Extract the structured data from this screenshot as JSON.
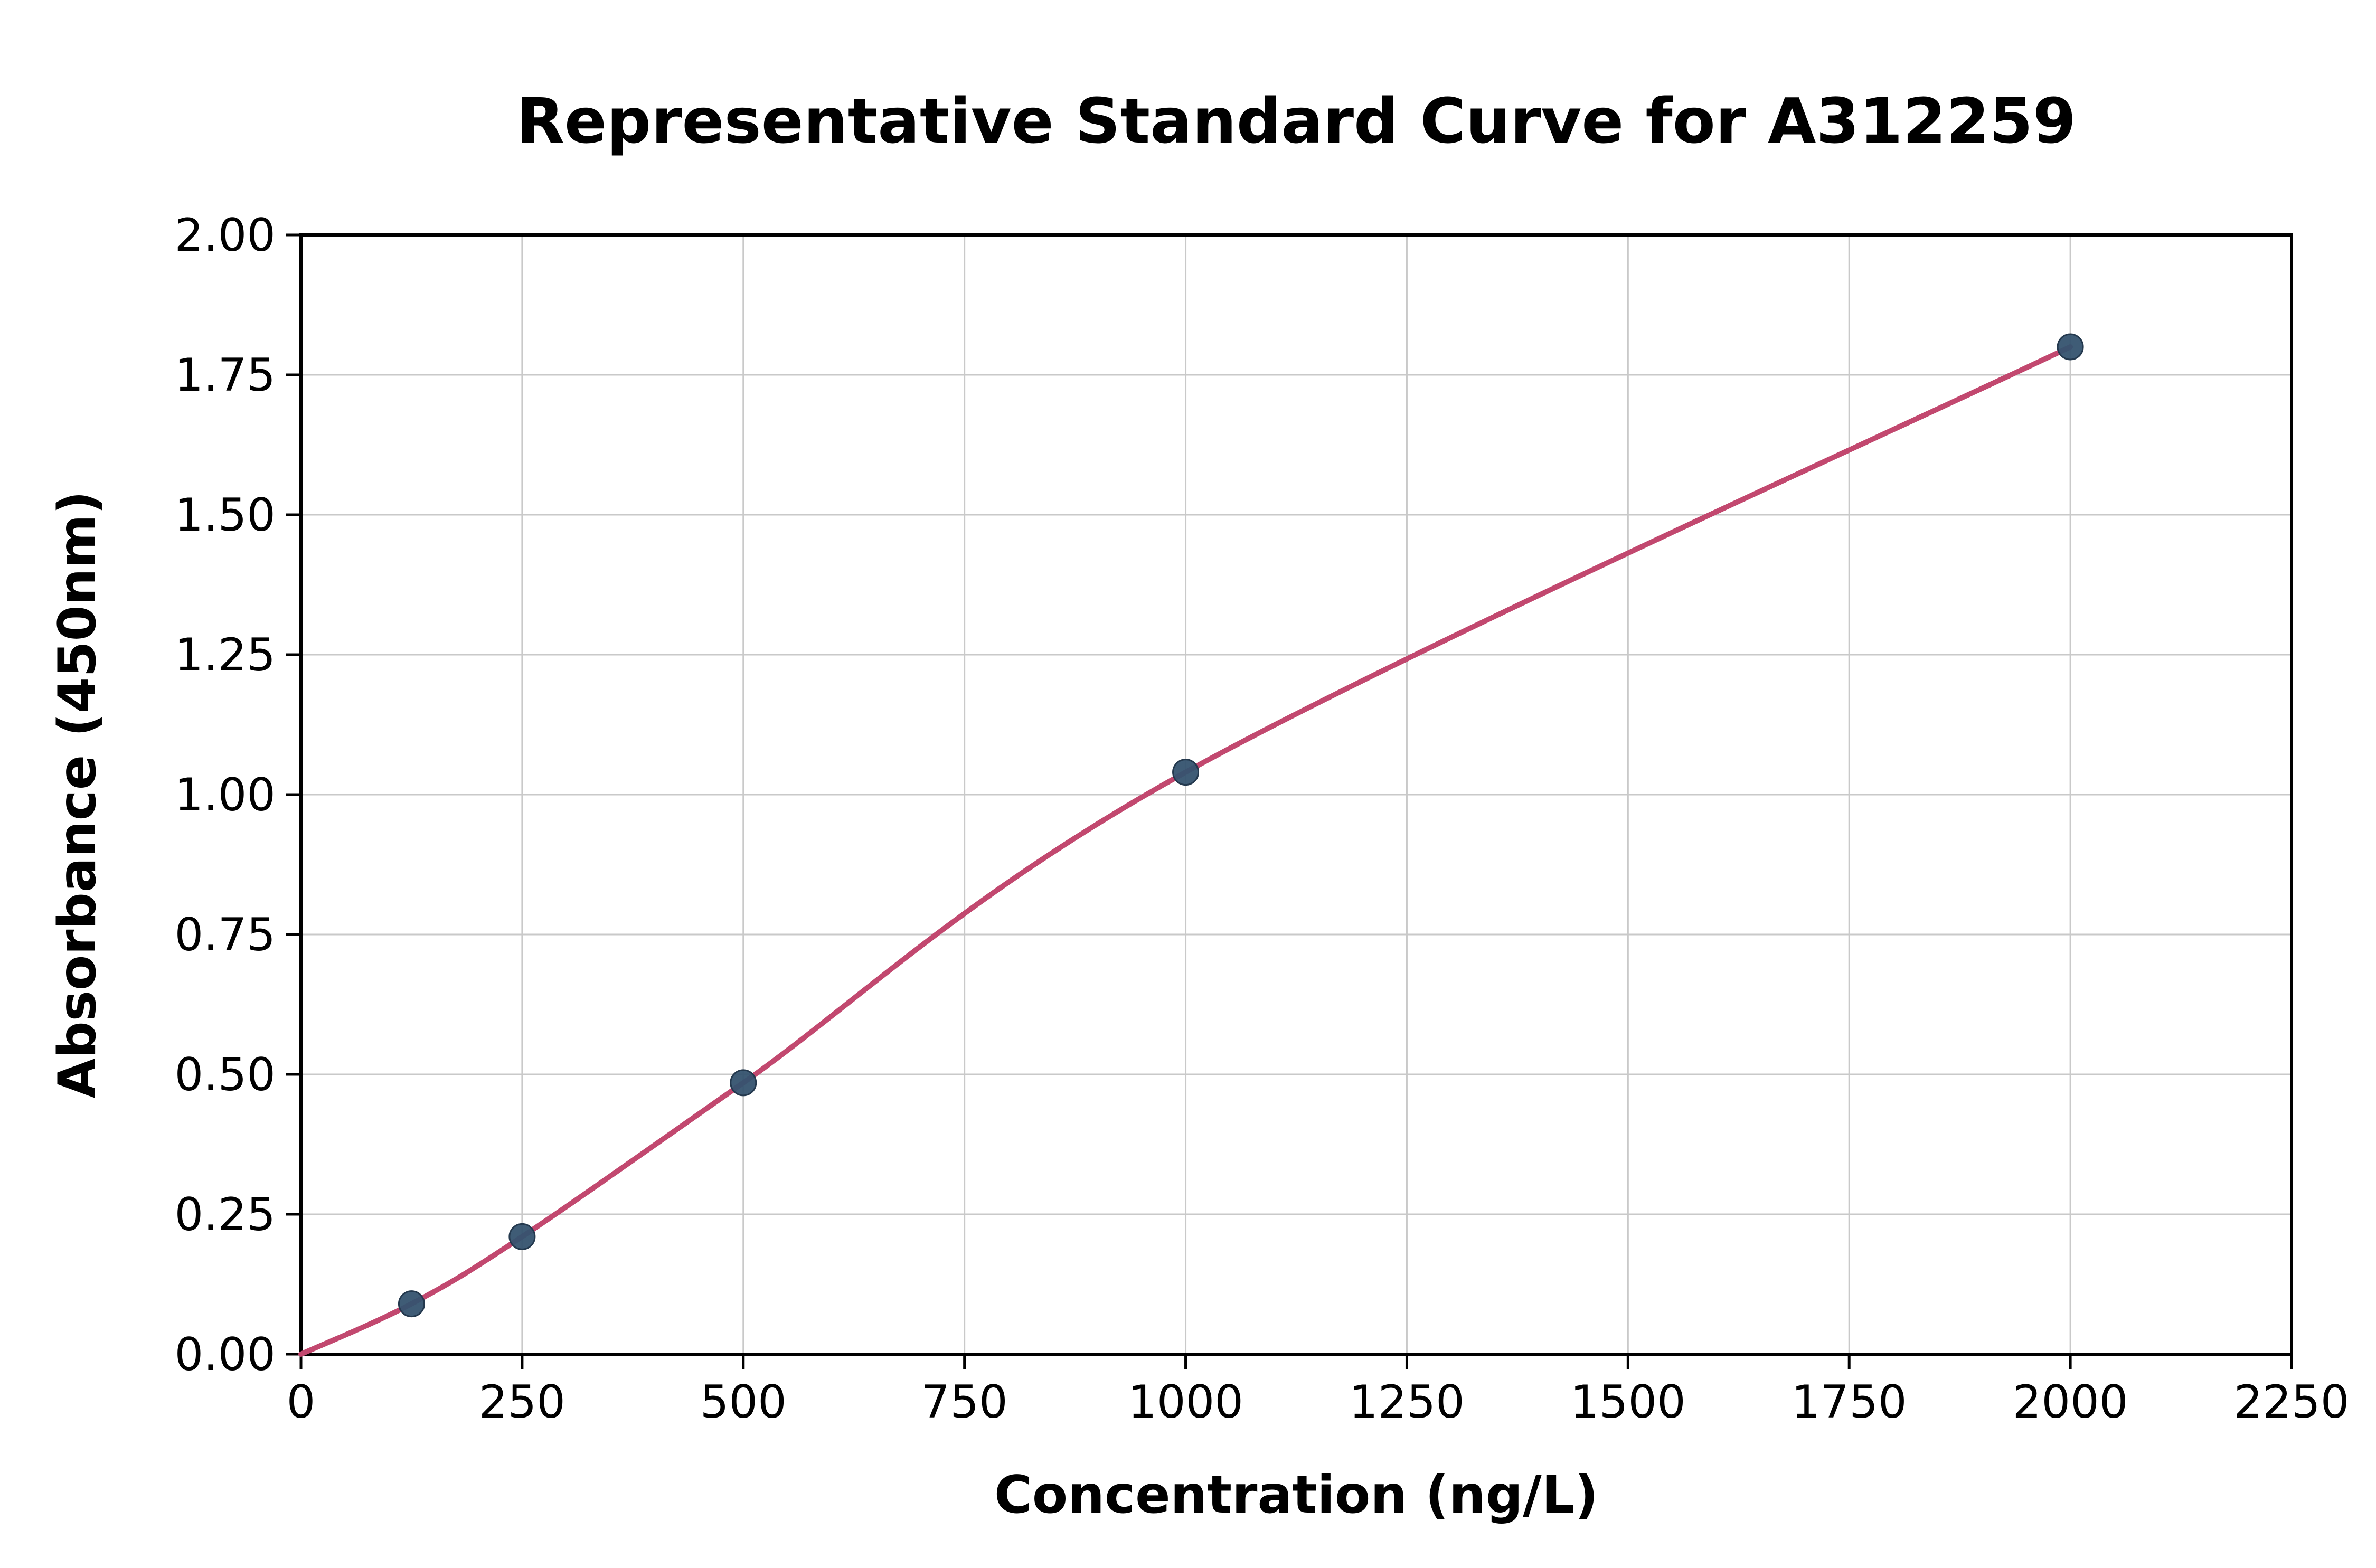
{
  "chart_data": {
    "type": "scatter",
    "title": "Representative Standard Curve for A312259",
    "xlabel": "Concentration (ng/L)",
    "ylabel": "Absorbance (450nm)",
    "xlim": [
      0,
      2250
    ],
    "ylim": [
      0.0,
      2.0
    ],
    "x_ticks": [
      0,
      250,
      500,
      750,
      1000,
      1250,
      1500,
      1750,
      2000,
      2250
    ],
    "y_ticks": [
      0.0,
      0.25,
      0.5,
      0.75,
      1.0,
      1.25,
      1.5,
      1.75,
      2.0
    ],
    "y_tick_decimals": 2,
    "grid": true,
    "legend": "none",
    "curve_start": {
      "x": 0,
      "y": 0.0
    },
    "points": {
      "x": [
        125,
        250,
        500,
        1000,
        2000
      ],
      "y": [
        0.09,
        0.21,
        0.485,
        1.04,
        1.8
      ]
    },
    "colors": {
      "curve": "#c2486f",
      "marker": "#35536f",
      "marker_edge": "#24394e",
      "grid": "#c9c9c9",
      "axis": "#000000",
      "background": "#ffffff"
    }
  }
}
